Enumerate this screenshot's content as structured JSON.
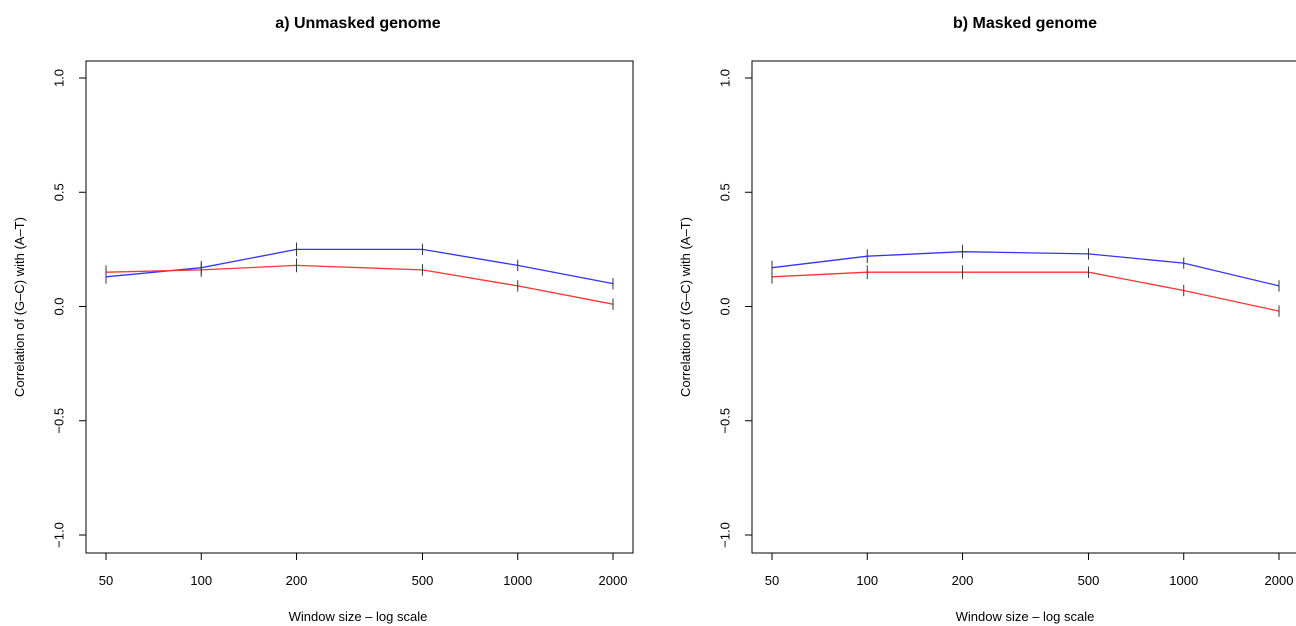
{
  "chart_data": [
    {
      "type": "line",
      "title": "a) Unmasked genome",
      "xlabel": "Window size – log scale",
      "ylabel": "Correlation of (G–C) with (A–T)",
      "x_scale": "log",
      "x": [
        50,
        100,
        200,
        500,
        1000,
        2000
      ],
      "x_tick_labels": [
        "50",
        "100",
        "200",
        "500",
        "1000",
        "2000"
      ],
      "ylim": [
        -1.0,
        1.0
      ],
      "y_ticks": [
        -1.0,
        -0.5,
        0.0,
        0.5,
        1.0
      ],
      "y_tick_labels": [
        "−1.0",
        "−0.5",
        "0.0",
        "0.5",
        "1.0"
      ],
      "grid": false,
      "error_bars": true,
      "series": [
        {
          "color": "#3333ff",
          "values": [
            0.13,
            0.17,
            0.25,
            0.25,
            0.18,
            0.1
          ],
          "errors": [
            0.03,
            0.03,
            0.03,
            0.025,
            0.025,
            0.025
          ]
        },
        {
          "color": "#ff3333",
          "values": [
            0.15,
            0.16,
            0.18,
            0.16,
            0.09,
            0.01
          ],
          "errors": [
            0.03,
            0.03,
            0.03,
            0.025,
            0.025,
            0.025
          ]
        }
      ]
    },
    {
      "type": "line",
      "title": "b) Masked genome",
      "xlabel": "Window size – log scale",
      "ylabel": "Correlation of (G–C) with (A–T)",
      "x_scale": "log",
      "x": [
        50,
        100,
        200,
        500,
        1000,
        2000
      ],
      "x_tick_labels": [
        "50",
        "100",
        "200",
        "500",
        "1000",
        "2000"
      ],
      "ylim": [
        -1.0,
        1.0
      ],
      "y_ticks": [
        -1.0,
        -0.5,
        0.0,
        0.5,
        1.0
      ],
      "y_tick_labels": [
        "−1.0",
        "−0.5",
        "0.0",
        "0.5",
        "1.0"
      ],
      "grid": false,
      "error_bars": true,
      "series": [
        {
          "color": "#3333ff",
          "values": [
            0.17,
            0.22,
            0.24,
            0.23,
            0.19,
            0.09
          ],
          "errors": [
            0.03,
            0.03,
            0.03,
            0.025,
            0.025,
            0.025
          ]
        },
        {
          "color": "#ff3333",
          "values": [
            0.13,
            0.15,
            0.15,
            0.15,
            0.07,
            -0.02
          ],
          "errors": [
            0.03,
            0.03,
            0.03,
            0.025,
            0.025,
            0.025
          ]
        }
      ]
    }
  ]
}
